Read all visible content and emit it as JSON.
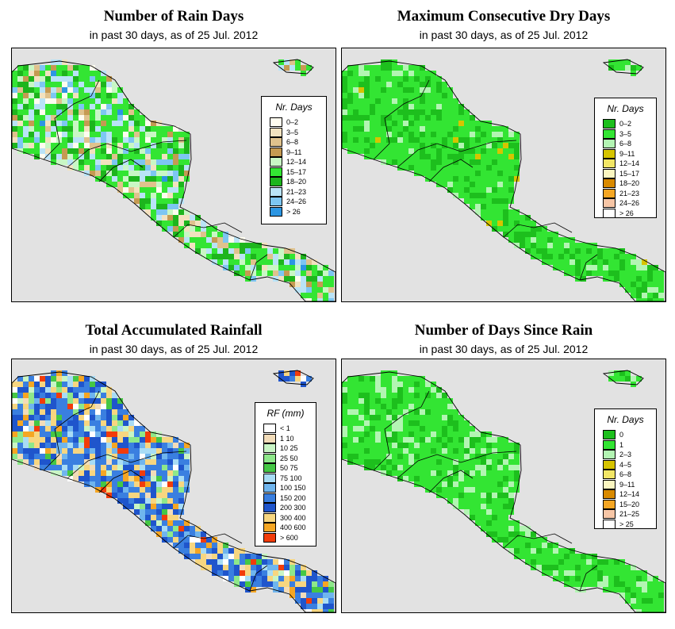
{
  "panels": [
    {
      "id": "rain-days",
      "title": "Number of Rain Days",
      "subtitle": "in past 30 days, as of  25 Jul. 2012",
      "legend": {
        "title": "Nr. Days",
        "items": [
          {
            "label": "0–2",
            "color": "#fffcef"
          },
          {
            "label": "3–5",
            "color": "#f2e2bf"
          },
          {
            "label": "6–8",
            "color": "#dfc28d"
          },
          {
            "label": "9–11",
            "color": "#c59a52"
          },
          {
            "label": "12–14",
            "color": "#c9f7c5"
          },
          {
            "label": "15–17",
            "color": "#33e533"
          },
          {
            "label": "18–20",
            "color": "#1db51d"
          },
          {
            "label": "21–23",
            "color": "#b9e3f7"
          },
          {
            "label": "24–26",
            "color": "#7dc6f2"
          },
          {
            "label": "> 26",
            "color": "#2c96e3"
          }
        ]
      }
    },
    {
      "id": "max-dry-days",
      "title": "Maximum Consecutive Dry Days",
      "subtitle": "in past 30 days, as of  25 Jul. 2012",
      "legend": {
        "title": "Nr. Days",
        "items": [
          {
            "label": "0–2",
            "color": "#1dbf1d"
          },
          {
            "label": "3–5",
            "color": "#33e533"
          },
          {
            "label": "6–8",
            "color": "#b3f5b3"
          },
          {
            "label": "9–11",
            "color": "#d6c400"
          },
          {
            "label": "12–14",
            "color": "#f2e666"
          },
          {
            "label": "15–17",
            "color": "#fbf6c0"
          },
          {
            "label": "18–20",
            "color": "#d98a00"
          },
          {
            "label": "21–23",
            "color": "#f5a623"
          },
          {
            "label": "24–26",
            "color": "#f7c6a6"
          },
          {
            "label": "> 26",
            "color": "#ffffff"
          }
        ]
      }
    },
    {
      "id": "total-rainfall",
      "title": "Total Accumulated Rainfall",
      "subtitle": "in past 30 days, as of  25 Jul. 2012",
      "legend": {
        "title": "RF (mm)",
        "items": [
          {
            "label": "< 1",
            "color": "#ffffff"
          },
          {
            "label": "1   10",
            "color": "#f2dcb9"
          },
          {
            "label": "10   25",
            "color": "#c9f5c5"
          },
          {
            "label": "25   50",
            "color": "#8ee88a"
          },
          {
            "label": "50   75",
            "color": "#45c745"
          },
          {
            "label": "75   100",
            "color": "#a8dcf5"
          },
          {
            "label": "100   150",
            "color": "#6fb5ee"
          },
          {
            "label": "150   200",
            "color": "#3a7fe0"
          },
          {
            "label": "200   300",
            "color": "#1f55cc"
          },
          {
            "label": "300   400",
            "color": "#f7d680"
          },
          {
            "label": "400   600",
            "color": "#f5a623"
          },
          {
            "label": "> 600",
            "color": "#f23c0a"
          }
        ]
      }
    },
    {
      "id": "days-since-rain",
      "title": "Number of Days Since Rain",
      "subtitle": "in past 30 days, as of  25 Jul. 2012",
      "legend": {
        "title": "Nr. Days",
        "items": [
          {
            "label": "0",
            "color": "#1dbf1d"
          },
          {
            "label": "1",
            "color": "#33e533"
          },
          {
            "label": "2–3",
            "color": "#b3f5b3"
          },
          {
            "label": "4–5",
            "color": "#d6c400"
          },
          {
            "label": "6–8",
            "color": "#f2e666"
          },
          {
            "label": "9–11",
            "color": "#fbf6c0"
          },
          {
            "label": "12–14",
            "color": "#d98a00"
          },
          {
            "label": "15–20",
            "color": "#f5a623"
          },
          {
            "label": "21–25",
            "color": "#f7c6a6"
          },
          {
            "label": "> 25",
            "color": "#ffffff"
          }
        ]
      }
    }
  ]
}
